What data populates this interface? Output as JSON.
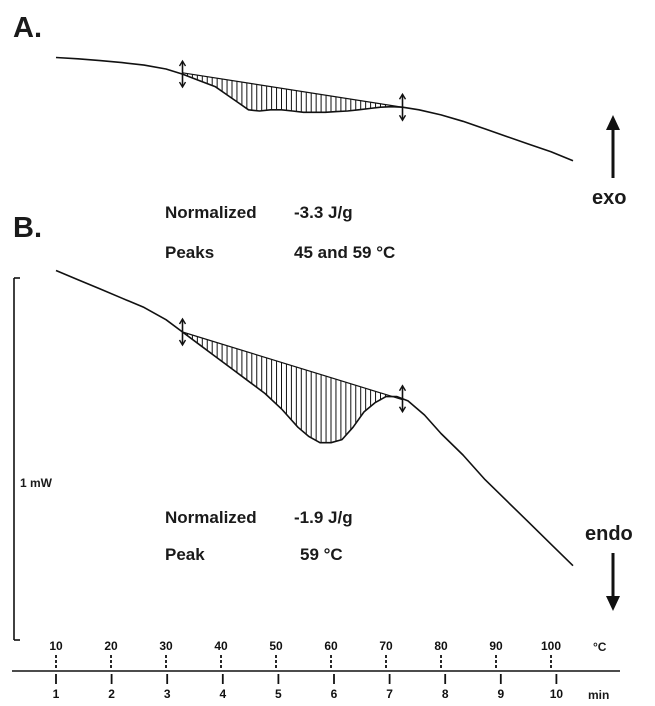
{
  "chart_data": [
    {
      "type": "line",
      "panel_label": "A.",
      "x_unit": "°C",
      "curve": {
        "x": [
          10,
          14,
          18,
          22,
          26,
          30,
          33,
          36,
          39,
          41,
          43,
          45,
          47,
          49,
          51,
          53,
          55,
          57,
          59,
          61,
          63,
          65,
          67,
          69,
          71,
          73,
          76,
          80,
          84,
          88,
          92,
          96,
          100,
          104
        ],
        "y": [
          5.0,
          4.95,
          4.88,
          4.8,
          4.7,
          4.55,
          4.35,
          4.1,
          3.85,
          3.55,
          3.25,
          2.95,
          2.9,
          2.95,
          2.95,
          2.9,
          2.85,
          2.85,
          2.85,
          2.88,
          2.9,
          2.95,
          3.0,
          3.05,
          3.07,
          3.05,
          2.95,
          2.75,
          2.5,
          2.2,
          1.9,
          1.6,
          1.3,
          0.95
        ]
      },
      "baseline": {
        "x": [
          33,
          73
        ],
        "y": [
          4.4,
          3.05
        ]
      },
      "integration_limits_c": [
        33,
        73
      ],
      "annotations": [
        {
          "label": "Normalized",
          "value": "-3.3 J/g"
        },
        {
          "label": "Peaks",
          "value": "45 and 59 °C"
        }
      ],
      "side_label": "exo",
      "side_arrow": "up"
    },
    {
      "type": "line",
      "panel_label": "B.",
      "x_unit": "°C",
      "curve": {
        "x": [
          10,
          14,
          18,
          22,
          26,
          30,
          33,
          36,
          39,
          42,
          45,
          48,
          51,
          54,
          56,
          58,
          60,
          62,
          64,
          66,
          68,
          70,
          72,
          74,
          77,
          80,
          84,
          88,
          92,
          96,
          100,
          104
        ],
        "y": [
          5.0,
          4.85,
          4.7,
          4.55,
          4.4,
          4.2,
          4.0,
          3.8,
          3.6,
          3.4,
          3.2,
          3.0,
          2.75,
          2.45,
          2.3,
          2.2,
          2.2,
          2.25,
          2.45,
          2.7,
          2.85,
          2.95,
          2.95,
          2.88,
          2.65,
          2.35,
          2.0,
          1.6,
          1.25,
          0.9,
          0.55,
          0.2
        ]
      },
      "baseline": {
        "x": [
          33,
          73
        ],
        "y": [
          4.0,
          2.9
        ]
      },
      "integration_limits_c": [
        33,
        73
      ],
      "annotations": [
        {
          "label": "Normalized",
          "value": "-1.9 J/g"
        },
        {
          "label": "Peak",
          "value": "59 °C"
        }
      ],
      "side_label": "endo",
      "side_arrow": "down"
    }
  ],
  "scale_bar_label": "1 mW",
  "x_axis": {
    "temperature": {
      "unit": "°C",
      "ticks": [
        "10",
        "20",
        "30",
        "40",
        "50",
        "60",
        "70",
        "80",
        "90",
        "100"
      ]
    },
    "time": {
      "unit": "min",
      "ticks": [
        "1",
        "2",
        "3",
        "4",
        "5",
        "6",
        "7",
        "8",
        "9",
        "10"
      ]
    }
  }
}
